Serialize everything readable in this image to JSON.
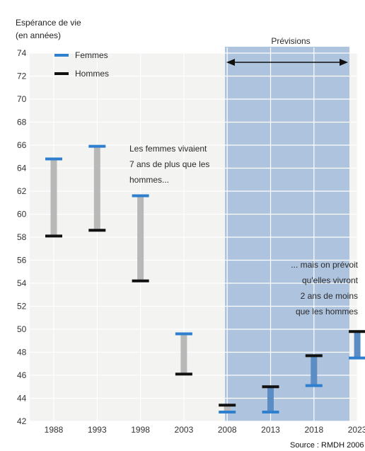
{
  "chart_data": {
    "type": "range-bar",
    "title_line1": "Espérance de vie",
    "title_line2": "(en années)",
    "ylim": [
      42,
      74
    ],
    "yticks": [
      42,
      44,
      46,
      48,
      50,
      52,
      54,
      56,
      58,
      60,
      62,
      64,
      66,
      68,
      70,
      72,
      74
    ],
    "categories": [
      "1988",
      "1993",
      "1998",
      "2003",
      "2008",
      "2013",
      "2018",
      "2023"
    ],
    "series": [
      {
        "name": "Femmes",
        "color": "#2f7fcf",
        "values": [
          64.8,
          65.9,
          61.6,
          49.6,
          42.8,
          42.8,
          45.1,
          47.5
        ]
      },
      {
        "name": "Hommes",
        "color": "#111111",
        "values": [
          58.1,
          58.6,
          54.2,
          46.1,
          43.4,
          45.0,
          47.7,
          49.8
        ]
      }
    ],
    "forecast_from_index": 5,
    "forecast_label": "Prévisions",
    "annotations": [
      {
        "lines": [
          "Les femmes vivaient",
          "7 ans de plus que les",
          "hommes..."
        ]
      },
      {
        "lines": [
          "... mais on prévoit",
          "qu'elles vivront",
          "2 ans de moins",
          "que les hommes"
        ]
      }
    ],
    "source": "Source : RMDH 2006",
    "grid": true,
    "legend": "top-left"
  },
  "colors": {
    "background": "#f3f3f1",
    "grid": "#ffffff",
    "forecast_region": "#aec3de",
    "bar_past": "#b8b8b8",
    "bar_forecast": "#5b8cc4"
  }
}
